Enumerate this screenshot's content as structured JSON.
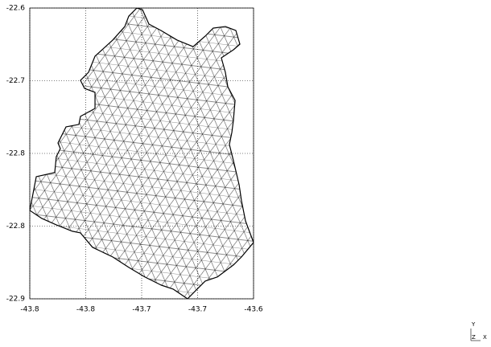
{
  "chart_data": {
    "type": "mesh",
    "x": [
      -43.7043,
      -43.6993,
      -43.6935,
      -43.6827,
      -43.6683,
      -43.654,
      -43.6432,
      -43.636,
      -43.6252,
      -43.6158,
      -43.6122,
      -43.618,
      -43.6288,
      -43.6252,
      -43.623,
      -43.6165,
      -43.618,
      -43.6194,
      -43.6216,
      -43.618,
      -43.6129,
      -43.6108,
      -43.6072,
      -43.6,
      -43.6108,
      -43.618,
      -43.6324,
      -43.6432,
      -43.6504,
      -43.659,
      -43.6719,
      -43.6827,
      -43.6971,
      -43.7115,
      -43.7259,
      -43.7439,
      -43.7547,
      -43.7619,
      -43.7763,
      -43.7892,
      -43.8,
      -43.7942,
      -43.7777,
      -43.7763,
      -43.7727,
      -43.7748,
      -43.7676,
      -43.7561,
      -43.7547,
      -43.7417,
      -43.7417,
      -43.7511,
      -43.7547,
      -43.7475,
      -43.7417,
      -43.7259,
      -43.7151,
      -43.7115,
      -43.7058
    ],
    "values": [
      -22.6,
      -22.6017,
      -22.6166,
      -22.6232,
      -22.6331,
      -22.6398,
      -22.629,
      -22.6207,
      -22.6191,
      -22.6232,
      -22.6373,
      -22.6431,
      -22.6514,
      -22.6663,
      -22.6812,
      -22.6953,
      -22.716,
      -22.7284,
      -22.7408,
      -22.7574,
      -22.7823,
      -22.7988,
      -22.8196,
      -22.8419,
      -22.8568,
      -22.8651,
      -22.8775,
      -22.8817,
      -22.89,
      -22.9,
      -22.89,
      -22.8858,
      -22.8775,
      -22.8676,
      -22.8568,
      -22.8469,
      -22.832,
      -22.8303,
      -22.8237,
      -22.8171,
      -22.8088,
      -22.774,
      -22.7698,
      -22.7533,
      -22.745,
      -22.7392,
      -22.7226,
      -22.7201,
      -22.7118,
      -22.7036,
      -22.687,
      -22.6829,
      -22.6746,
      -22.6663,
      -22.6497,
      -22.6331,
      -22.6191,
      -22.6083,
      -22.6017
    ],
    "color": "#000000",
    "grid": true,
    "xlim": [
      -43.8,
      -43.6
    ],
    "xticks": [
      -43.8,
      {
        "value": -43.75,
        "label": "-43.8"
      },
      -43.7,
      {
        "value": -43.65,
        "label": "-43.7"
      },
      -43.6
    ],
    "ylim": [
      -22.9,
      -22.6
    ],
    "yticks": [
      -22.6,
      {
        "value": -22.675,
        "label": "-22.7"
      },
      {
        "value": -22.75,
        "label": "-22.8"
      },
      {
        "value": -22.825,
        "label": "-22.8"
      },
      -22.9
    ],
    "orientation_labels": {
      "y": "Y",
      "z": "Z",
      "x": "X"
    }
  }
}
